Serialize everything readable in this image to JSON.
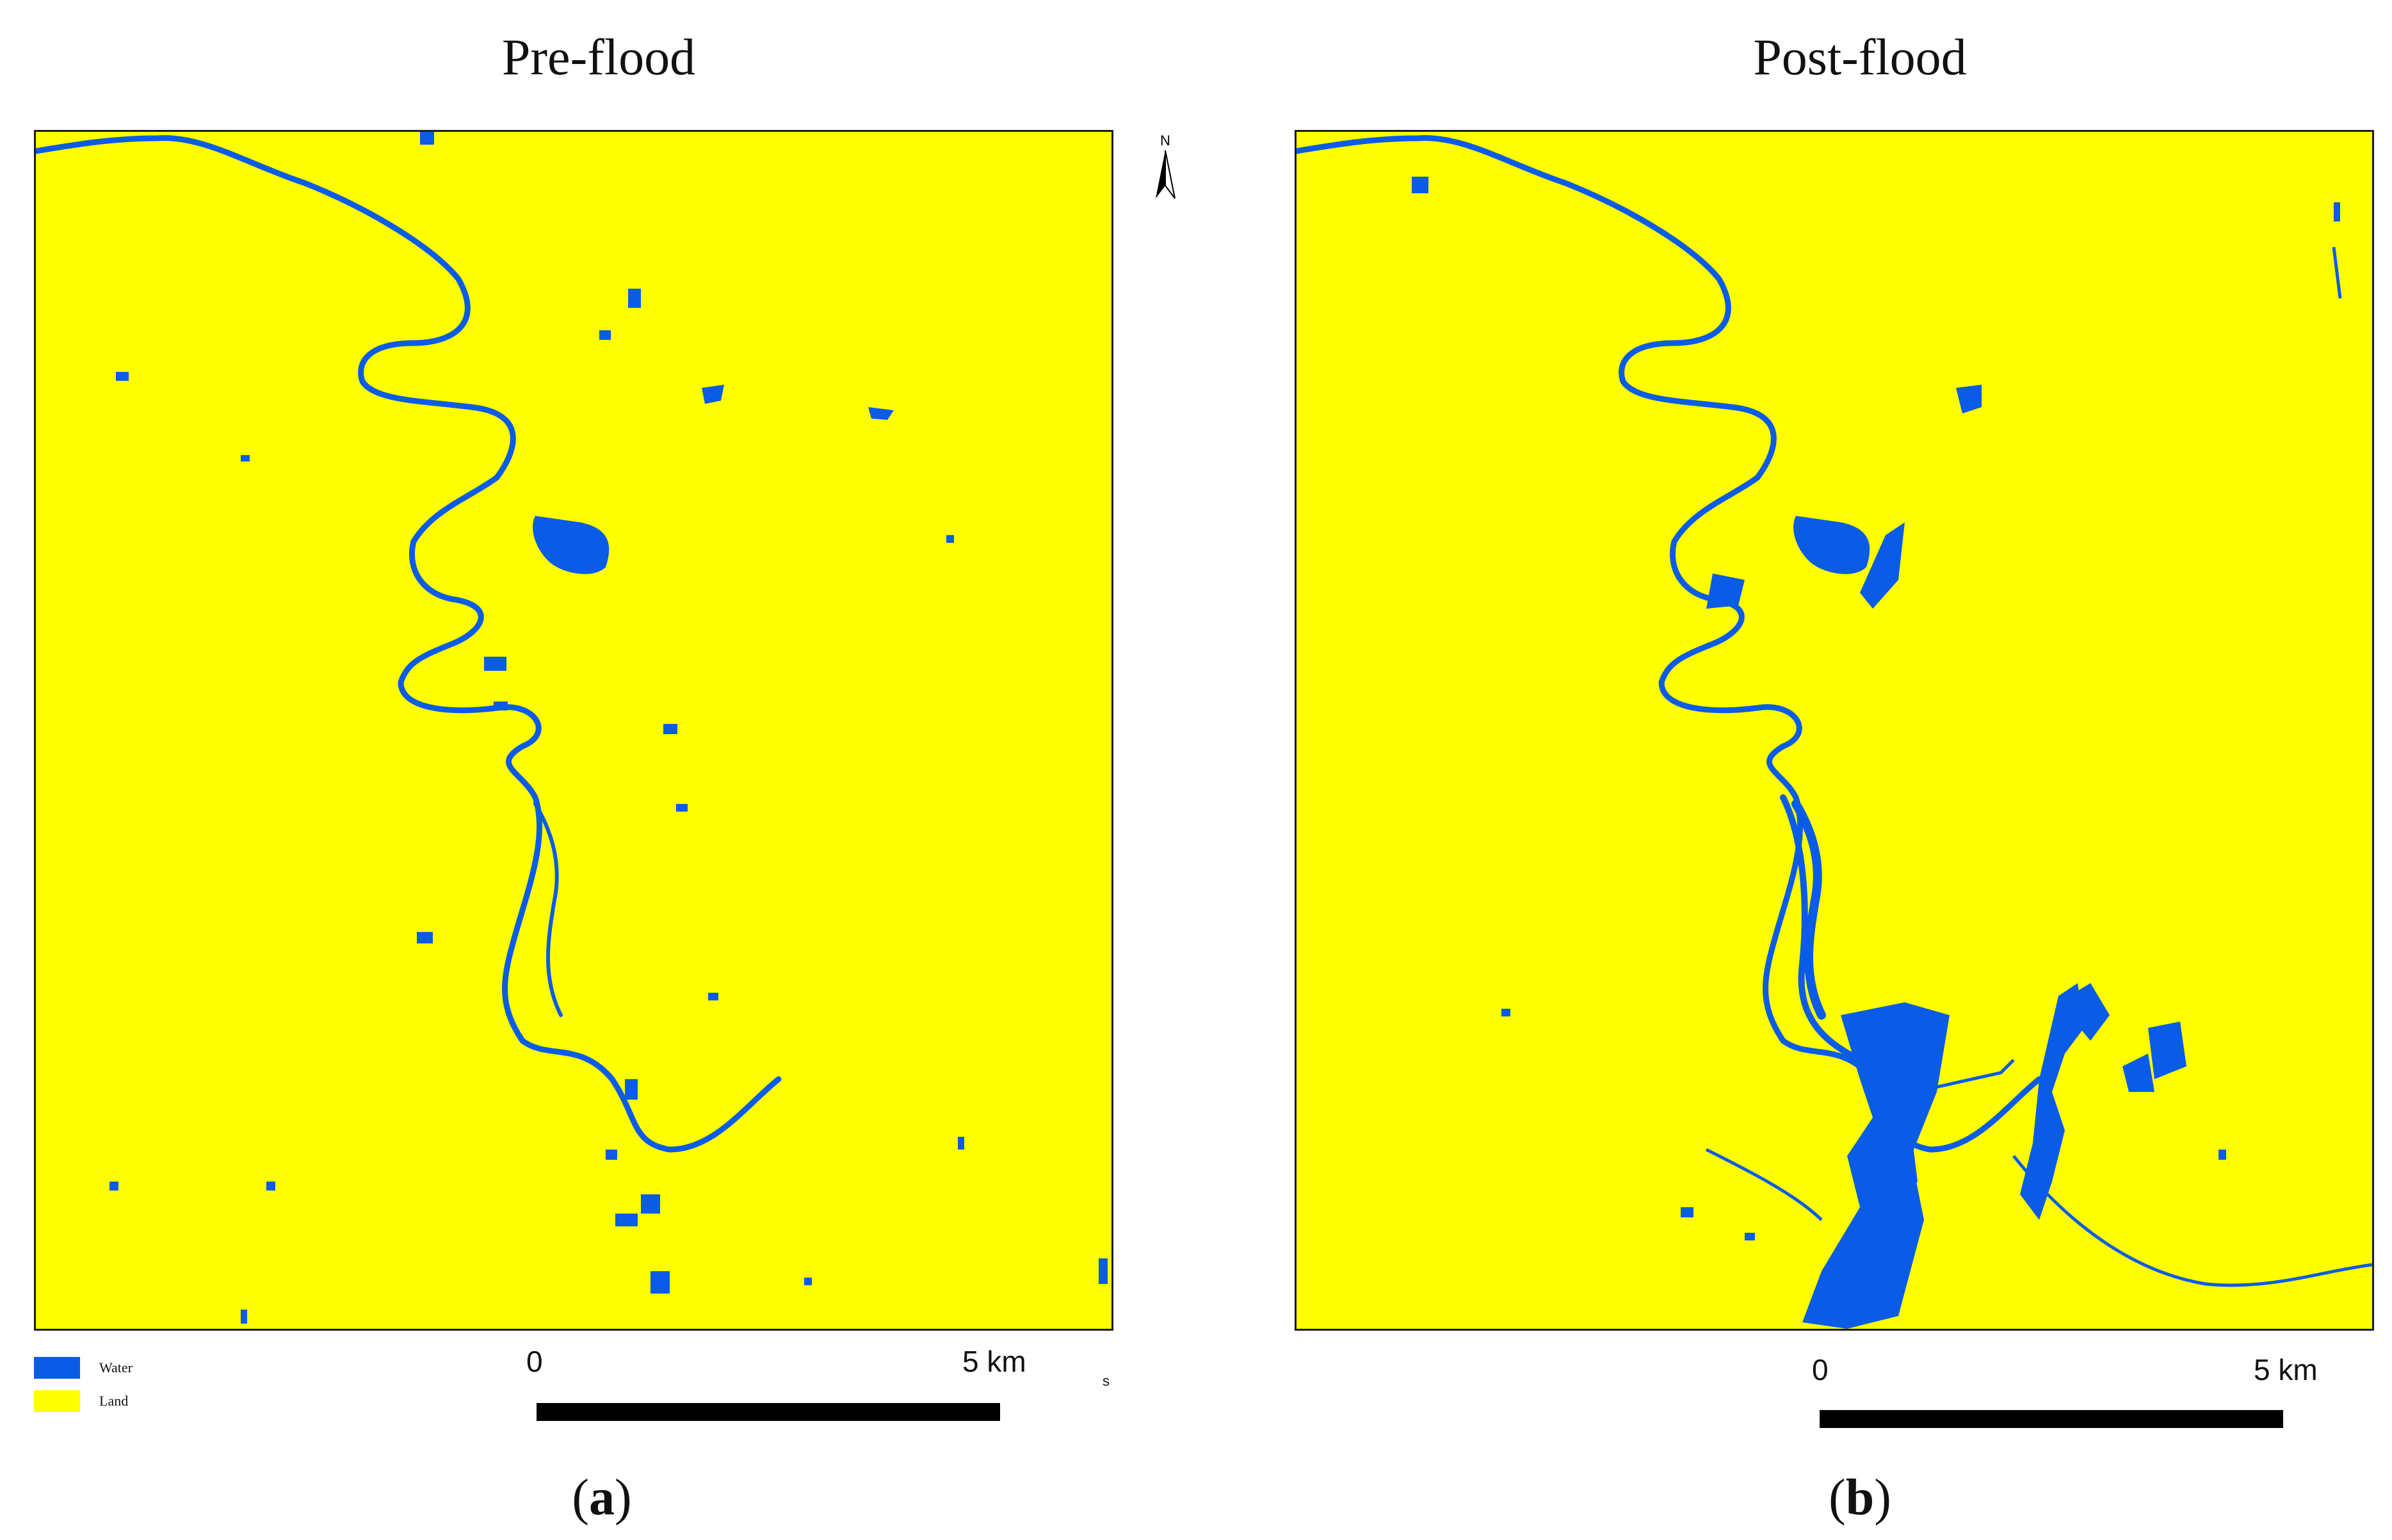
{
  "colors": {
    "water": "#0a5ce6",
    "land": "#ffff00"
  },
  "panels": [
    {
      "title": "Pre-flood",
      "caption_letter": "a",
      "scale_start": "0",
      "scale_end": "5 km"
    },
    {
      "title": "Post-flood",
      "caption_letter": "b",
      "scale_start": "0",
      "scale_end": "5 km"
    }
  ],
  "legend": [
    {
      "label": "Water",
      "color": "#0a5ce6"
    },
    {
      "label": "Land",
      "color": "#ffff00"
    }
  ],
  "north_label": "N",
  "stray_label": "s",
  "icons": [
    "north-arrow-icon"
  ]
}
